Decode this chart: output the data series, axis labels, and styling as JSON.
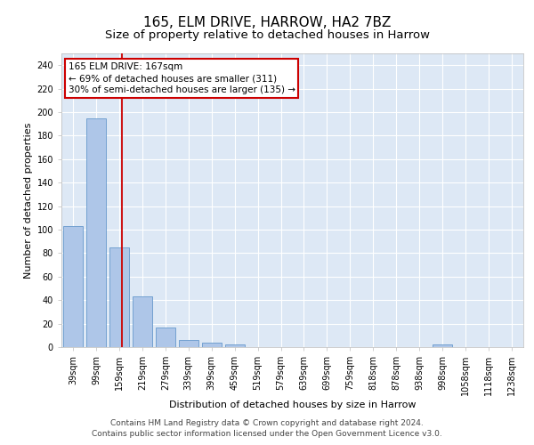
{
  "title": "165, ELM DRIVE, HARROW, HA2 7BZ",
  "subtitle": "Size of property relative to detached houses in Harrow",
  "xlabel": "Distribution of detached houses by size in Harrow",
  "ylabel": "Number of detached properties",
  "categories": [
    "39sqm",
    "99sqm",
    "159sqm",
    "219sqm",
    "279sqm",
    "339sqm",
    "399sqm",
    "459sqm",
    "519sqm",
    "579sqm",
    "639sqm",
    "699sqm",
    "759sqm",
    "818sqm",
    "878sqm",
    "938sqm",
    "998sqm",
    "1058sqm",
    "1118sqm",
    "1238sqm"
  ],
  "values": [
    103,
    195,
    85,
    43,
    17,
    6,
    4,
    2,
    0,
    0,
    0,
    0,
    0,
    0,
    0,
    0,
    2,
    0,
    0,
    0
  ],
  "bar_color": "#aec6e8",
  "bar_edge_color": "#6699cc",
  "background_color": "#dde8f5",
  "grid_color": "#ffffff",
  "annotation_text": "165 ELM DRIVE: 167sqm\n← 69% of detached houses are smaller (311)\n30% of semi-detached houses are larger (135) →",
  "annotation_box_color": "#ffffff",
  "annotation_box_edge_color": "#cc0000",
  "vline_color": "#cc0000",
  "vline_x": 2.13,
  "ylim": [
    0,
    250
  ],
  "yticks": [
    0,
    20,
    40,
    60,
    80,
    100,
    120,
    140,
    160,
    180,
    200,
    220,
    240
  ],
  "footer_line1": "Contains HM Land Registry data © Crown copyright and database right 2024.",
  "footer_line2": "Contains public sector information licensed under the Open Government Licence v3.0.",
  "title_fontsize": 11,
  "subtitle_fontsize": 9.5,
  "axis_label_fontsize": 8,
  "tick_fontsize": 7,
  "annotation_fontsize": 7.5,
  "footer_fontsize": 6.5
}
